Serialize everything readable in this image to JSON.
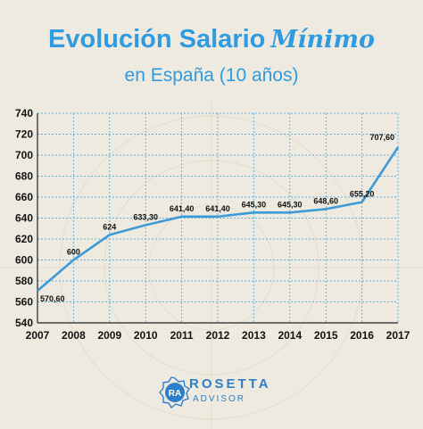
{
  "header": {
    "title_main": "Evolución Salario",
    "title_script": "Mínimo",
    "subtitle": "en España (10 años)"
  },
  "logo": {
    "mark": "RA",
    "name": "ROSETTA",
    "tagline": "ADVISOR"
  },
  "colors": {
    "accent": "#2f9be0",
    "line": "#3d9ad6",
    "grid": "#5aaee0"
  },
  "chart_data": {
    "type": "line",
    "title": "Evolución Salario Mínimo en España (10 años)",
    "x": [
      "2007",
      "2008",
      "2009",
      "2010",
      "2011",
      "2012",
      "2013",
      "2014",
      "2015",
      "2016",
      "2017"
    ],
    "values": [
      570.6,
      600,
      624,
      633.3,
      641.4,
      641.4,
      645.3,
      645.3,
      648.6,
      655.2,
      707.6
    ],
    "labels": [
      "570,60",
      "600",
      "624",
      "633,30",
      "641,40",
      "641,40",
      "645,30",
      "645,30",
      "648,60",
      "655,20",
      "707,60"
    ],
    "ylim": [
      540,
      740
    ],
    "yticks": [
      "540",
      "560",
      "580",
      "600",
      "620",
      "640",
      "660",
      "680",
      "700",
      "720",
      "740"
    ],
    "grid": true
  }
}
